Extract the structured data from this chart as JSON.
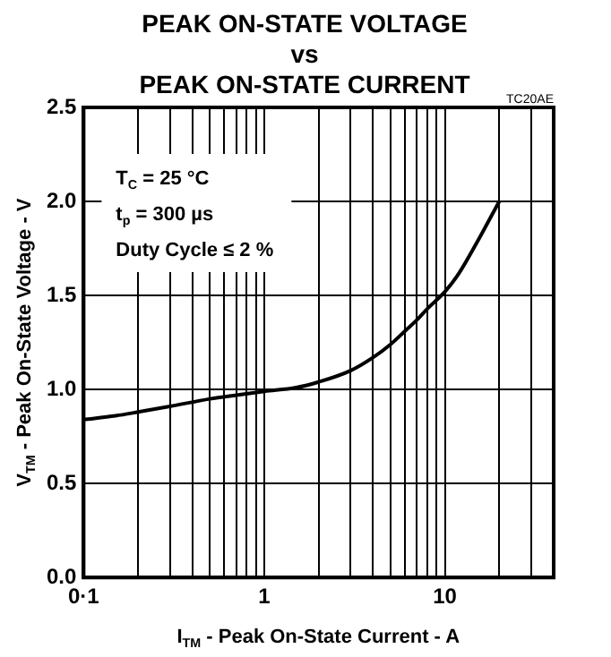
{
  "chart_data": {
    "type": "line",
    "title": "PEAK ON-STATE VOLTAGE\nvs\nPEAK ON-STATE CURRENT",
    "xlabel": "I$_{TM}$ - Peak On-State Current - A",
    "ylabel": "V$_{TM}$ - Peak On-State Voltage - V",
    "annotations": [
      "TC20AE",
      "T$_{C}$ = 25 °C",
      "t$_{p}$ = 300 µs",
      "Duty Cycle ≤ 2 %"
    ],
    "x": [
      0.1,
      0.15,
      0.2,
      0.3,
      0.5,
      0.7,
      1,
      1.5,
      2,
      3,
      4,
      5,
      6,
      7,
      8,
      10,
      12,
      15,
      20
    ],
    "series": [
      {
        "color": "#000000",
        "values": [
          0.84,
          0.86,
          0.88,
          0.91,
          0.95,
          0.97,
          0.99,
          1.01,
          1.04,
          1.1,
          1.17,
          1.24,
          1.31,
          1.37,
          1.43,
          1.52,
          1.62,
          1.78,
          2.0
        ]
      }
    ],
    "log": "x",
    "xlim": [
      0.1,
      40
    ],
    "xticks": [
      {
        "value": 0.1,
        "label": "0·1"
      },
      {
        "value": 0.2,
        "label": null
      },
      {
        "value": 0.3,
        "label": null
      },
      {
        "value": 0.4,
        "label": null
      },
      {
        "value": 0.5,
        "label": null
      },
      {
        "value": 0.6,
        "label": null
      },
      {
        "value": 0.7,
        "label": null
      },
      {
        "value": 0.8,
        "label": null
      },
      {
        "value": 0.9,
        "label": null
      },
      1,
      {
        "value": 2,
        "label": null
      },
      {
        "value": 3,
        "label": null
      },
      {
        "value": 4,
        "label": null
      },
      {
        "value": 5,
        "label": null
      },
      {
        "value": 6,
        "label": null
      },
      {
        "value": 7,
        "label": null
      },
      {
        "value": 8,
        "label": null
      },
      {
        "value": 9,
        "label": null
      },
      10,
      {
        "value": 20,
        "label": null
      },
      {
        "value": 30,
        "label": null
      },
      {
        "value": 40,
        "label": null
      }
    ],
    "ylim": [
      0,
      2.5
    ],
    "yticks": [
      {
        "value": 0,
        "label": "0.0"
      },
      0.5,
      {
        "value": 1,
        "label": "1.0"
      },
      1.5,
      {
        "value": 2,
        "label": "2.0"
      },
      2.5
    ],
    "grid": true,
    "legend": false,
    "marker": "none",
    "line_style": "solid"
  }
}
